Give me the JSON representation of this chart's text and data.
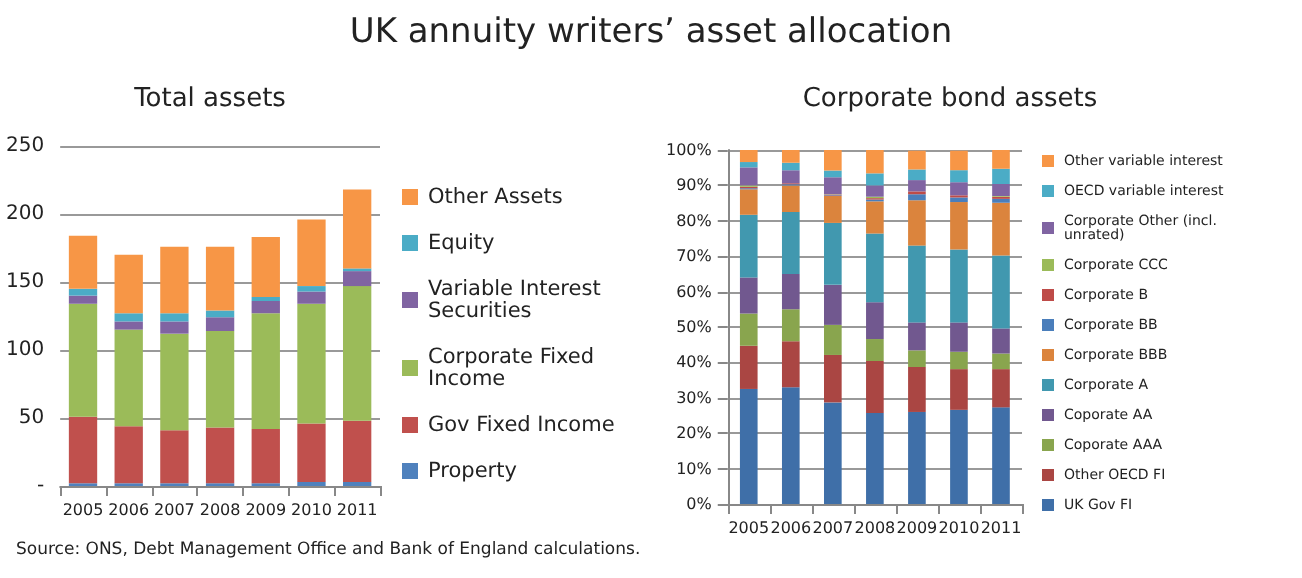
{
  "chart_data": [
    {
      "type": "bar",
      "title": "UK annuity writers’ asset allocation",
      "subtitle": "Total assets",
      "stacked": true,
      "categories": [
        "2005",
        "2006",
        "2007",
        "2008",
        "2009",
        "2010",
        "2011"
      ],
      "series": [
        {
          "name": "Property",
          "color": "#4f81bd",
          "values": [
            2,
            2,
            2,
            2,
            2,
            3,
            3
          ]
        },
        {
          "name": "Gov Fixed Income",
          "color": "#c0504d",
          "values": [
            49,
            42,
            39,
            41,
            40,
            43,
            45
          ]
        },
        {
          "name": "Corporate Fixed Income",
          "color": "#9bbb59",
          "values": [
            83,
            71,
            71,
            71,
            85,
            88,
            99
          ]
        },
        {
          "name": "Variable Interest Securities",
          "color": "#8064a2",
          "values": [
            6,
            6,
            9,
            10,
            9,
            9,
            11
          ]
        },
        {
          "name": "Equity",
          "color": "#4bacc6",
          "values": [
            5,
            6,
            6,
            5,
            3,
            4,
            2
          ]
        },
        {
          "name": "Other Assets",
          "color": "#f79646",
          "values": [
            39,
            43,
            49,
            47,
            44,
            49,
            58
          ]
        }
      ],
      "ylim": [
        0,
        250
      ],
      "yticks": [
        {
          "value": 0,
          "label": "-"
        },
        50,
        100,
        150,
        200,
        250
      ],
      "grid": "y",
      "legend": "right",
      "annotations": [
        "Source: ONS, Debt Management Office and Bank of England calculations."
      ]
    },
    {
      "type": "bar",
      "title": "Corporate bond assets",
      "stacked": true,
      "categories": [
        "2005",
        "2006",
        "2007",
        "2008",
        "2009",
        "2010",
        "2011"
      ],
      "series": [
        {
          "name": "UK Gov FI",
          "color": "#3f6fa8",
          "values": [
            32.5,
            33,
            28.7,
            25.7,
            26,
            26.6,
            27.3
          ]
        },
        {
          "name": "Other OECD FI",
          "color": "#aa4643",
          "values": [
            12.2,
            13,
            13.4,
            14.7,
            12.7,
            11.5,
            10.8
          ]
        },
        {
          "name": "Coporate AAA",
          "color": "#89a54e",
          "values": [
            9.1,
            9,
            8.5,
            6.2,
            4.7,
            4.9,
            4.4
          ]
        },
        {
          "name": "Coporate AA",
          "color": "#71588f",
          "values": [
            10.2,
            10,
            11.3,
            10.4,
            7.9,
            8.3,
            7.1
          ]
        },
        {
          "name": "Corporate A",
          "color": "#4198af",
          "values": [
            17.7,
            17.5,
            17.5,
            19.4,
            21.7,
            20.6,
            20.6
          ]
        },
        {
          "name": "Corporate BBB",
          "color": "#db843d",
          "values": [
            7.2,
            7.5,
            7.6,
            9.1,
            12.8,
            13.4,
            14.9
          ]
        },
        {
          "name": "Corporate BB",
          "color": "#4a7ebb",
          "values": [
            0.3,
            0.3,
            0.2,
            0.5,
            1.7,
            1.3,
            1.1
          ]
        },
        {
          "name": "Corporate B",
          "color": "#be4b48",
          "values": [
            0.4,
            0.3,
            0.2,
            0.4,
            0.8,
            0.6,
            0.6
          ]
        },
        {
          "name": "Corporate CCC",
          "color": "#9bbb59",
          "values": [
            0.4,
            null,
            0.1,
            0.4,
            null,
            null,
            0.2
          ]
        },
        {
          "name": "Corporate Other (incl. unrated)",
          "color": "#8064a2",
          "values": [
            5.1,
            3.7,
            4.8,
            3.2,
            3.2,
            3.7,
            3.4
          ]
        },
        {
          "name": "OECD variable interest",
          "color": "#4bacc6",
          "values": [
            1.5,
            2.1,
            1.9,
            3.4,
            3,
            3.4,
            4.3
          ]
        },
        {
          "name": "Other variable interest",
          "color": "#f79646",
          "values": [
            3.4,
            3.6,
            5.8,
            6.6,
            5.3,
            5.5,
            5.3
          ]
        }
      ],
      "ylim": [
        0,
        100
      ],
      "yticks": [
        {
          "value": 0,
          "label": "0%"
        },
        {
          "value": 10,
          "label": "10%"
        },
        {
          "value": 20,
          "label": "20%"
        },
        {
          "value": 30,
          "label": "30%"
        },
        {
          "value": 40,
          "label": "40%"
        },
        {
          "value": 50,
          "label": "50%"
        },
        {
          "value": 60,
          "label": "60%"
        },
        {
          "value": 70,
          "label": "70%"
        },
        {
          "value": 80,
          "label": "80%"
        },
        {
          "value": 90,
          "label": "90%"
        },
        {
          "value": 100,
          "label": "100%"
        }
      ],
      "grid": "y",
      "legend": "right"
    }
  ]
}
